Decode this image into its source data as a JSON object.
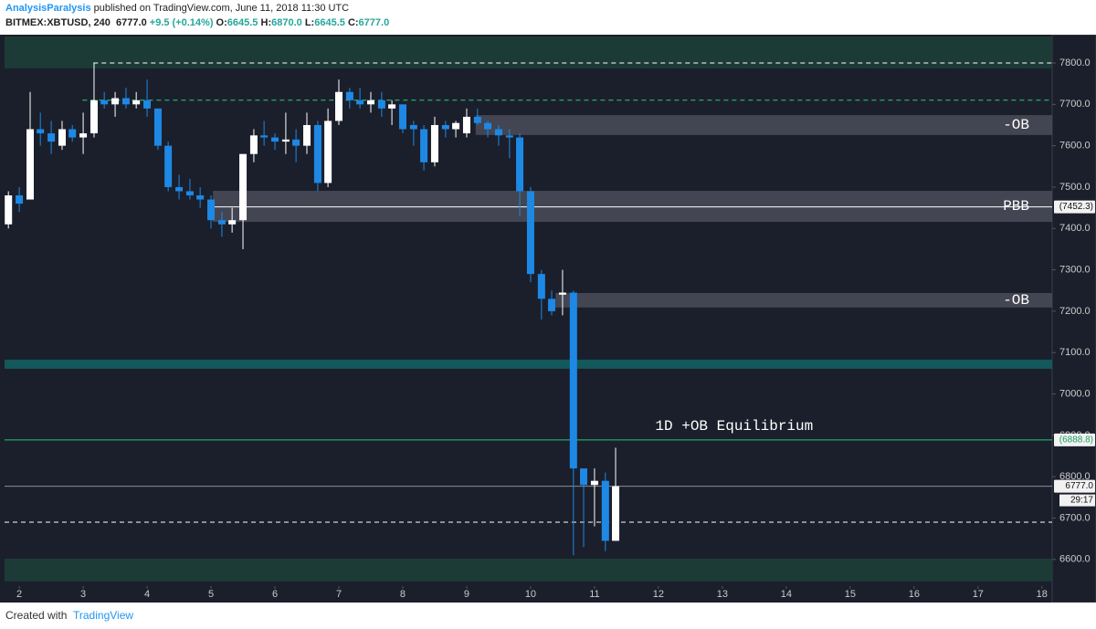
{
  "header": {
    "author": "AnalysisParalysis",
    "published": "published on TradingView.com, June 11, 2018 11:30 UTC",
    "symbol": "BITMEX:XBTUSD, 240",
    "last": "6777.0",
    "change": "+9.5 (+0.14%)",
    "open_label": "O:",
    "open": "6645.5",
    "high_label": "H:",
    "high": "6870.0",
    "low_label": "L:",
    "low": "6645.5",
    "close_label": "C:",
    "close": "6777.0"
  },
  "footer": {
    "created": "Created with",
    "brand": "TradingView"
  },
  "chart_data": {
    "type": "candlestick",
    "x": [
      1.83,
      2,
      2.17,
      2.33,
      2.5,
      2.67,
      2.83,
      3,
      3.17,
      3.33,
      3.5,
      3.67,
      3.83,
      4,
      4.17,
      4.33,
      4.5,
      4.67,
      4.83,
      5,
      5.17,
      5.33,
      5.5,
      5.67,
      5.83,
      6,
      6.17,
      6.33,
      6.5,
      6.67,
      6.83,
      7,
      7.17,
      7.33,
      7.5,
      7.67,
      7.83,
      8,
      8.17,
      8.33,
      8.5,
      8.67,
      8.83,
      9,
      9.17,
      9.33,
      9.5,
      9.67,
      9.83,
      10,
      10.17,
      10.33,
      10.5,
      10.67,
      10.83,
      11,
      11.17,
      11.33
    ],
    "open": [
      7410,
      7480,
      7470,
      7640,
      7630,
      7600,
      7640,
      7620,
      7630,
      7710,
      7700,
      7715,
      7700,
      7710,
      7690,
      7600,
      7500,
      7490,
      7480,
      7470,
      7420,
      7410,
      7420,
      7580,
      7625,
      7620,
      7610,
      7615,
      7600,
      7650,
      7510,
      7660,
      7730,
      7710,
      7700,
      7710,
      7690,
      7700,
      7650,
      7640,
      7560,
      7650,
      7640,
      7630,
      7670,
      7655,
      7640,
      7625,
      7620,
      7490,
      7290,
      7230,
      7240,
      7245,
      6820,
      6780,
      6790,
      6645
    ],
    "high": [
      7490,
      7500,
      7730,
      7680,
      7660,
      7660,
      7650,
      7680,
      7800,
      7730,
      7730,
      7740,
      7730,
      7760,
      7690,
      7610,
      7530,
      7520,
      7500,
      7480,
      7440,
      7450,
      7580,
      7640,
      7660,
      7630,
      7680,
      7640,
      7680,
      7660,
      7690,
      7760,
      7740,
      7740,
      7730,
      7730,
      7710,
      7700,
      7660,
      7650,
      7670,
      7660,
      7660,
      7690,
      7690,
      7660,
      7650,
      7640,
      7630,
      7500,
      7300,
      7250,
      7300,
      7250,
      6820,
      6820,
      6810,
      6870
    ],
    "low": [
      7400,
      7440,
      7470,
      7600,
      7580,
      7590,
      7610,
      7580,
      7620,
      7690,
      7670,
      7690,
      7690,
      7670,
      7590,
      7490,
      7470,
      7470,
      7450,
      7400,
      7380,
      7390,
      7350,
      7560,
      7600,
      7590,
      7580,
      7560,
      7580,
      7490,
      7500,
      7650,
      7690,
      7690,
      7680,
      7670,
      7650,
      7630,
      7600,
      7540,
      7550,
      7620,
      7620,
      7620,
      7650,
      7620,
      7600,
      7570,
      7430,
      7270,
      7180,
      7190,
      7190,
      6610,
      6630,
      6680,
      6620,
      6645
    ],
    "close": [
      7480,
      7460,
      7640,
      7630,
      7610,
      7640,
      7620,
      7630,
      7710,
      7700,
      7715,
      7700,
      7710,
      7690,
      7600,
      7500,
      7490,
      7480,
      7470,
      7420,
      7410,
      7420,
      7580,
      7625,
      7620,
      7610,
      7615,
      7600,
      7650,
      7510,
      7660,
      7730,
      7710,
      7700,
      7710,
      7690,
      7700,
      7640,
      7640,
      7560,
      7650,
      7640,
      7655,
      7670,
      7655,
      7640,
      7625,
      7620,
      7490,
      7290,
      7230,
      7200,
      7245,
      6820,
      6780,
      6790,
      6645,
      6777
    ],
    "up_color": "#ffffff",
    "down_color": "#1e88e5",
    "xlim": [
      1.77,
      18.16
    ],
    "xticks": [
      2,
      3,
      4,
      5,
      6,
      7,
      8,
      9,
      10,
      11,
      12,
      13,
      14,
      15,
      16,
      17,
      18
    ],
    "ylim": [
      6540,
      7864
    ],
    "yticks": [
      {
        "value": 6600,
        "label": "6600.0"
      },
      {
        "value": 6700,
        "label": "6700.0"
      },
      {
        "value": 6800,
        "label": "6800.0"
      },
      {
        "value": 6900,
        "label": "6900.0"
      },
      {
        "value": 7000,
        "label": "7000.0"
      },
      {
        "value": 7100,
        "label": "7100.0"
      },
      {
        "value": 7200,
        "label": "7200.0"
      },
      {
        "value": 7300,
        "label": "7300.0"
      },
      {
        "value": 7400,
        "label": "7400.0"
      },
      {
        "value": 7500,
        "label": "7500.0"
      },
      {
        "value": 7600,
        "label": "7600.0"
      },
      {
        "value": 7700,
        "label": "7700.0"
      },
      {
        "value": 7800,
        "label": "7800.0"
      }
    ],
    "zones": [
      {
        "from": 7787,
        "to": 7864,
        "color": "#1d3b36"
      },
      {
        "from": 6547,
        "to": 6602,
        "color": "#1d3b36"
      },
      {
        "from": 7061,
        "to": 7083,
        "color": "#13585a"
      },
      {
        "from": 7626,
        "to": 7674,
        "start": 9.14,
        "color": "#4a4e59",
        "label": "-OB"
      },
      {
        "from": 7416,
        "to": 7491,
        "start": 5.03,
        "color": "#4a4e59",
        "label": "PBB"
      },
      {
        "from": 7209,
        "to": 7244,
        "start": 10.39,
        "color": "#4a4e59",
        "label": "-OB"
      }
    ],
    "levels": [
      {
        "value": 7800,
        "start": 3.16,
        "color": "#ffffff",
        "dash": true
      },
      {
        "value": 7710,
        "start": 2.99,
        "color": "#26d07c",
        "dash": true
      },
      {
        "value": 7452.3,
        "start": 5.03,
        "color": "#ffffff",
        "label": "(7452.3)"
      },
      {
        "value": 6888.8,
        "start": 1.77,
        "color": "#26c281",
        "label": "(6888.8)",
        "text": "1D +OB Equilibrium"
      },
      {
        "value": 6777,
        "start": 1.77,
        "color": "#8a8e96",
        "label": "6777.0",
        "countdown": "29:17"
      },
      {
        "value": 6690,
        "start": 1.77,
        "color": "#ffffff",
        "dash": true
      }
    ]
  }
}
